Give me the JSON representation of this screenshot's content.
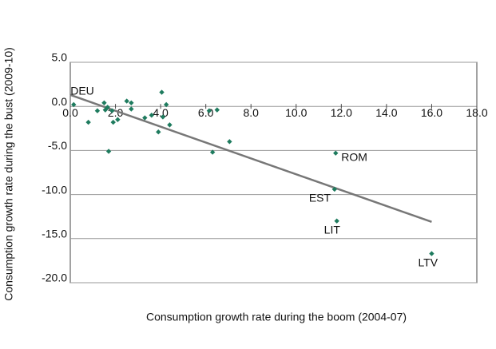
{
  "chart_data": {
    "type": "scatter",
    "x_label": "Consumption growth rate during the boom (2004-07)",
    "y_label": "Consumption growth rate during the bust (2009-10)",
    "x": [
      0.15,
      0.8,
      1.2,
      1.5,
      1.55,
      1.65,
      1.7,
      1.85,
      1.9,
      2.1,
      2.5,
      2.7,
      2.7,
      3.3,
      3.6,
      3.9,
      4.05,
      4.1,
      4.25,
      4.4,
      6.15,
      6.3,
      6.5,
      7.05,
      11.75,
      11.7,
      11.8,
      16.0
    ],
    "y": [
      0.2,
      -1.8,
      -0.5,
      0.4,
      -0.4,
      -0.1,
      -5.1,
      -0.5,
      -1.8,
      -1.5,
      0.6,
      0.4,
      -0.3,
      -1.3,
      -1.0,
      -2.9,
      1.6,
      -1.2,
      0.2,
      -2.1,
      -0.5,
      -5.2,
      -0.4,
      -4.0,
      -5.3,
      -9.4,
      -13.0,
      -16.7
    ],
    "labels": [
      "DEU",
      null,
      null,
      null,
      null,
      null,
      null,
      null,
      null,
      null,
      null,
      null,
      null,
      null,
      null,
      null,
      null,
      null,
      null,
      null,
      null,
      null,
      null,
      null,
      "ROM",
      "EST",
      "LIT",
      "LTV"
    ],
    "color": "#1e7b5e",
    "trend": {
      "color": "#777777",
      "x": [
        0,
        16.0
      ],
      "y": [
        1.3,
        -13.1
      ]
    },
    "xlim": [
      0,
      18
    ],
    "ylim": [
      -20,
      5
    ],
    "xticks": [
      {
        "value": 0,
        "label": "0.0"
      },
      {
        "value": 2,
        "label": "2.0"
      },
      {
        "value": 4,
        "label": "4.0"
      },
      {
        "value": 6,
        "label": "6.0"
      },
      {
        "value": 8,
        "label": "8.0"
      },
      {
        "value": 10,
        "label": "10.0"
      },
      {
        "value": 12,
        "label": "12.0"
      },
      {
        "value": 14,
        "label": "14.0"
      },
      {
        "value": 16,
        "label": "16.0"
      },
      {
        "value": 18,
        "label": "18.0"
      }
    ],
    "yticks": [
      {
        "value": -20,
        "label": "-20.0"
      },
      {
        "value": -15,
        "label": "-15.0"
      },
      {
        "value": -10,
        "label": "-10.0"
      },
      {
        "value": -5,
        "label": "-5.0"
      },
      {
        "value": 0,
        "label": "0.0"
      },
      {
        "value": 5,
        "label": "5.0"
      }
    ],
    "grid": true
  }
}
